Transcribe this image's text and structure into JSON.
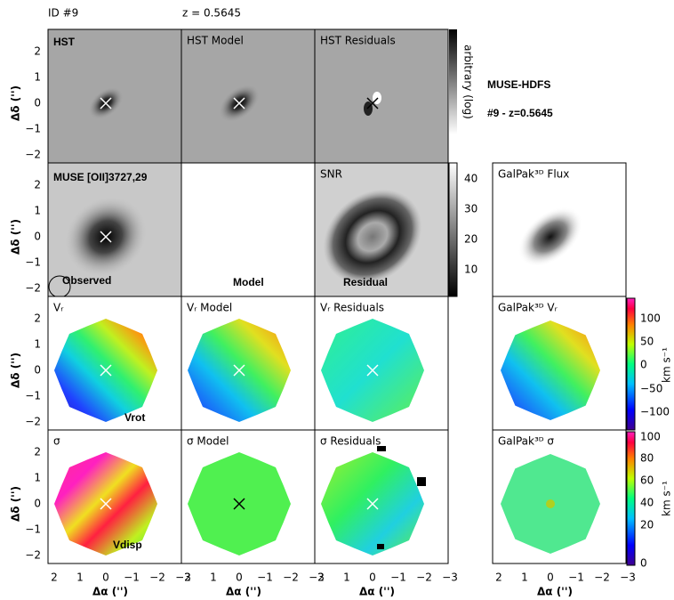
{
  "header": {
    "id": "ID #9",
    "redshift": "z = 0.5645"
  },
  "title": {
    "line1": "MUSE-HDFS",
    "line2": "#9 - z=0.5645"
  },
  "labels": {
    "hst": "HST",
    "muse": "MUSE [OII]3727,29",
    "observed": "Observed",
    "model": "Model",
    "residual": "Residual",
    "vrot": "Vrot",
    "vdisp": "Vdisp"
  },
  "panel_titles": [
    "HST Model",
    "HST Residuals",
    "SNR",
    "GalPak³ᴰ Flux",
    "Vᵣ",
    "Vᵣ Model",
    "Vᵣ Residuals",
    "GalPak³ᴰ Vᵣ",
    "σ",
    "σ Model",
    "σ Residuals",
    "GalPak³ᴰ σ"
  ],
  "axes": {
    "y_label": "Δδ ('')",
    "x_label": "Δα ('')",
    "y_ticks": [
      "2",
      "1",
      "0",
      "−1",
      "−2"
    ],
    "x_ticks": [
      "2",
      "1",
      "0",
      "−1",
      "−2",
      "−3"
    ]
  },
  "colorbars": {
    "hst": {
      "label": "arbitrary (log)"
    },
    "snr": {
      "ticks": [
        "10",
        "20",
        "30",
        "40"
      ]
    },
    "velocity": {
      "label": "km s⁻¹",
      "ticks": [
        "100",
        "50",
        "0",
        "−50",
        "−100"
      ]
    },
    "dispersion": {
      "label": "km s⁻¹",
      "ticks": [
        "100",
        "80",
        "60",
        "40",
        "20",
        "0"
      ]
    }
  }
}
